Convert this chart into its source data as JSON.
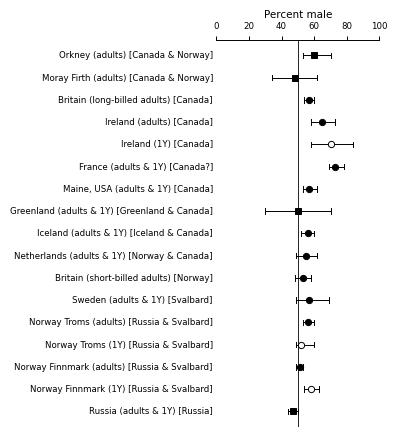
{
  "title": "Percent male",
  "xlim": [
    0,
    100
  ],
  "xticks": [
    0,
    20,
    40,
    60,
    80,
    100
  ],
  "vline": 50,
  "labels": [
    "Orkney (adults) [Canada & Norway]",
    "Moray Firth (adults) [Canada & Norway]",
    "Britain (long-billed adults) [Canada]",
    "Ireland (adults) [Canada]",
    "Ireland (1Y) [Canada]",
    "France (adults & 1Y) [Canada?]",
    "Maine, USA (adults & 1Y) [Canada]",
    "Greenland (adults & 1Y) [Greenland & Canada]",
    "Iceland (adults & 1Y) [Iceland & Canada]",
    "Netherlands (adults & 1Y) [Norway & Canada]",
    "Britain (short-billed adults) [Norway]",
    "Sweden (adults & 1Y) [Svalbard]",
    "Norway Troms (adults) [Russia & Svalbard]",
    "Norway Troms (1Y) [Russia & Svalbard]",
    "Norway Finnmark (adults) [Russia & Svalbard]",
    "Norway Finnmark (1Y) [Russia & Svalbard]",
    "Russia (adults & 1Y) [Russia]"
  ],
  "values": [
    60,
    48,
    57,
    65,
    70,
    73,
    57,
    50,
    56,
    55,
    53,
    57,
    56,
    52,
    51,
    58,
    47
  ],
  "xerr_low": [
    7,
    14,
    3,
    7,
    12,
    4,
    4,
    20,
    4,
    6,
    5,
    8,
    3,
    3,
    2,
    4,
    3
  ],
  "xerr_high": [
    10,
    14,
    3,
    8,
    14,
    5,
    5,
    20,
    4,
    7,
    5,
    12,
    4,
    8,
    2,
    5,
    3
  ],
  "marker_shape": [
    "s",
    "s",
    "o",
    "o",
    "o",
    "o",
    "o",
    "s",
    "o",
    "o",
    "o",
    "o",
    "o",
    "o",
    "o",
    "o",
    "s"
  ],
  "filled": [
    true,
    true,
    true,
    true,
    false,
    true,
    true,
    true,
    true,
    true,
    true,
    true,
    true,
    false,
    true,
    false,
    true
  ],
  "background": "#ffffff",
  "line_color": "#000000",
  "fontsize": 6.2,
  "title_fontsize": 7.5,
  "markersize": 4.5,
  "capsize": 0.12
}
